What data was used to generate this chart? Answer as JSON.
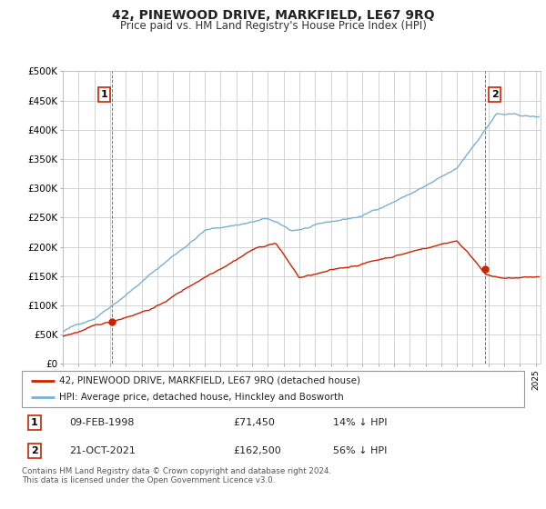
{
  "title": "42, PINEWOOD DRIVE, MARKFIELD, LE67 9RQ",
  "subtitle": "Price paid vs. HM Land Registry's House Price Index (HPI)",
  "title_fontsize": 10,
  "subtitle_fontsize": 8.5,
  "hpi_color": "#7ab0d4",
  "price_color": "#cc2200",
  "background_color": "#ffffff",
  "grid_color": "#cccccc",
  "ylim": [
    0,
    500000
  ],
  "yticks": [
    0,
    50000,
    100000,
    150000,
    200000,
    250000,
    300000,
    350000,
    400000,
    450000,
    500000
  ],
  "ytick_labels": [
    "£0",
    "£50K",
    "£100K",
    "£150K",
    "£200K",
    "£250K",
    "£300K",
    "£350K",
    "£400K",
    "£450K",
    "£500K"
  ],
  "legend_entry1": "42, PINEWOOD DRIVE, MARKFIELD, LE67 9RQ (detached house)",
  "legend_entry2": "HPI: Average price, detached house, Hinckley and Bosworth",
  "annotation1_date": "09-FEB-1998",
  "annotation1_price": "£71,450",
  "annotation1_pct": "14% ↓ HPI",
  "annotation2_date": "21-OCT-2021",
  "annotation2_price": "£162,500",
  "annotation2_pct": "56% ↓ HPI",
  "footnote": "Contains HM Land Registry data © Crown copyright and database right 2024.\nThis data is licensed under the Open Government Licence v3.0.",
  "sale1_x": 1998.11,
  "sale1_y": 71450,
  "sale2_x": 2021.8,
  "sale2_y": 162500,
  "xmin": 1995,
  "xmax": 2025.3
}
